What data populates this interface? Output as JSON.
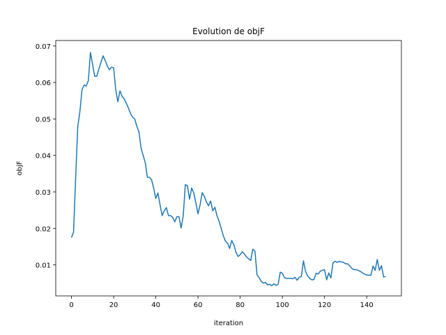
{
  "chart_data": {
    "type": "line",
    "title": "Evolution de objF",
    "xlabel": "iteration",
    "ylabel": "objF",
    "x": [
      0,
      1,
      2,
      3,
      4,
      5,
      6,
      7,
      8,
      9,
      10,
      11,
      12,
      13,
      14,
      15,
      16,
      17,
      18,
      19,
      20,
      21,
      22,
      23,
      24,
      25,
      26,
      27,
      28,
      29,
      30,
      31,
      32,
      33,
      34,
      35,
      36,
      37,
      38,
      39,
      40,
      41,
      42,
      43,
      44,
      45,
      46,
      47,
      48,
      49,
      50,
      51,
      52,
      53,
      54,
      55,
      56,
      57,
      58,
      59,
      60,
      61,
      62,
      63,
      64,
      65,
      66,
      67,
      68,
      69,
      70,
      71,
      72,
      73,
      74,
      75,
      76,
      77,
      78,
      79,
      80,
      81,
      82,
      83,
      84,
      85,
      86,
      87,
      88,
      89,
      90,
      91,
      92,
      93,
      94,
      95,
      96,
      97,
      98,
      99,
      100,
      101,
      102,
      103,
      104,
      105,
      106,
      107,
      108,
      109,
      110,
      111,
      112,
      113,
      114,
      115,
      116,
      117,
      118,
      119,
      120,
      121,
      122,
      123,
      124,
      125,
      126,
      127,
      128,
      129,
      130,
      131,
      132,
      133,
      134,
      135,
      136,
      137,
      138,
      139,
      140,
      141,
      142,
      143,
      144,
      145,
      146,
      147,
      148,
      149
    ],
    "values": [
      0.0175,
      0.019,
      0.034,
      0.048,
      0.052,
      0.058,
      0.0593,
      0.059,
      0.0605,
      0.0682,
      0.065,
      0.0617,
      0.0617,
      0.0637,
      0.0655,
      0.0673,
      0.066,
      0.0645,
      0.0635,
      0.0642,
      0.064,
      0.058,
      0.0547,
      0.0577,
      0.0562,
      0.0555,
      0.0543,
      0.053,
      0.0515,
      0.0505,
      0.05,
      0.048,
      0.0465,
      0.042,
      0.04,
      0.038,
      0.034,
      0.034,
      0.0333,
      0.031,
      0.0282,
      0.0297,
      0.0265,
      0.0235,
      0.0248,
      0.0257,
      0.0235,
      0.0235,
      0.023,
      0.0218,
      0.0232,
      0.0232,
      0.0201,
      0.0235,
      0.032,
      0.0317,
      0.028,
      0.0311,
      0.0297,
      0.027,
      0.024,
      0.0265,
      0.0298,
      0.0288,
      0.0272,
      0.0262,
      0.0275,
      0.0248,
      0.0258,
      0.0235,
      0.022,
      0.02,
      0.018,
      0.0165,
      0.016,
      0.0145,
      0.0167,
      0.0155,
      0.0135,
      0.0123,
      0.0128,
      0.0136,
      0.013,
      0.0122,
      0.0117,
      0.0112,
      0.0143,
      0.0138,
      0.0073,
      0.0065,
      0.0055,
      0.005,
      0.0052,
      0.0045,
      0.0047,
      0.0043,
      0.0048,
      0.0044,
      0.0047,
      0.008,
      0.0077,
      0.0065,
      0.0063,
      0.0063,
      0.0063,
      0.0062,
      0.0066,
      0.0058,
      0.0066,
      0.0068,
      0.0111,
      0.0082,
      0.007,
      0.0063,
      0.0059,
      0.006,
      0.0077,
      0.0075,
      0.0083,
      0.0085,
      0.0087,
      0.0059,
      0.0078,
      0.0064,
      0.0105,
      0.011,
      0.0107,
      0.011,
      0.0108,
      0.0107,
      0.0103,
      0.0103,
      0.0097,
      0.009,
      0.0087,
      0.0087,
      0.0085,
      0.0082,
      0.0078,
      0.0075,
      0.0072,
      0.0072,
      0.0072,
      0.0097,
      0.0085,
      0.0115,
      0.0085,
      0.0098,
      0.0067,
      0.0068
    ],
    "color": "#1f77b4",
    "xlim": [
      -7.45,
      156.45
    ],
    "xticks": [
      0,
      20,
      40,
      60,
      80,
      100,
      120,
      140
    ],
    "ylim": [
      0.0015,
      0.0715
    ],
    "yticks": [
      0.01,
      0.02,
      0.03,
      0.04,
      0.05,
      0.06,
      0.07
    ]
  }
}
